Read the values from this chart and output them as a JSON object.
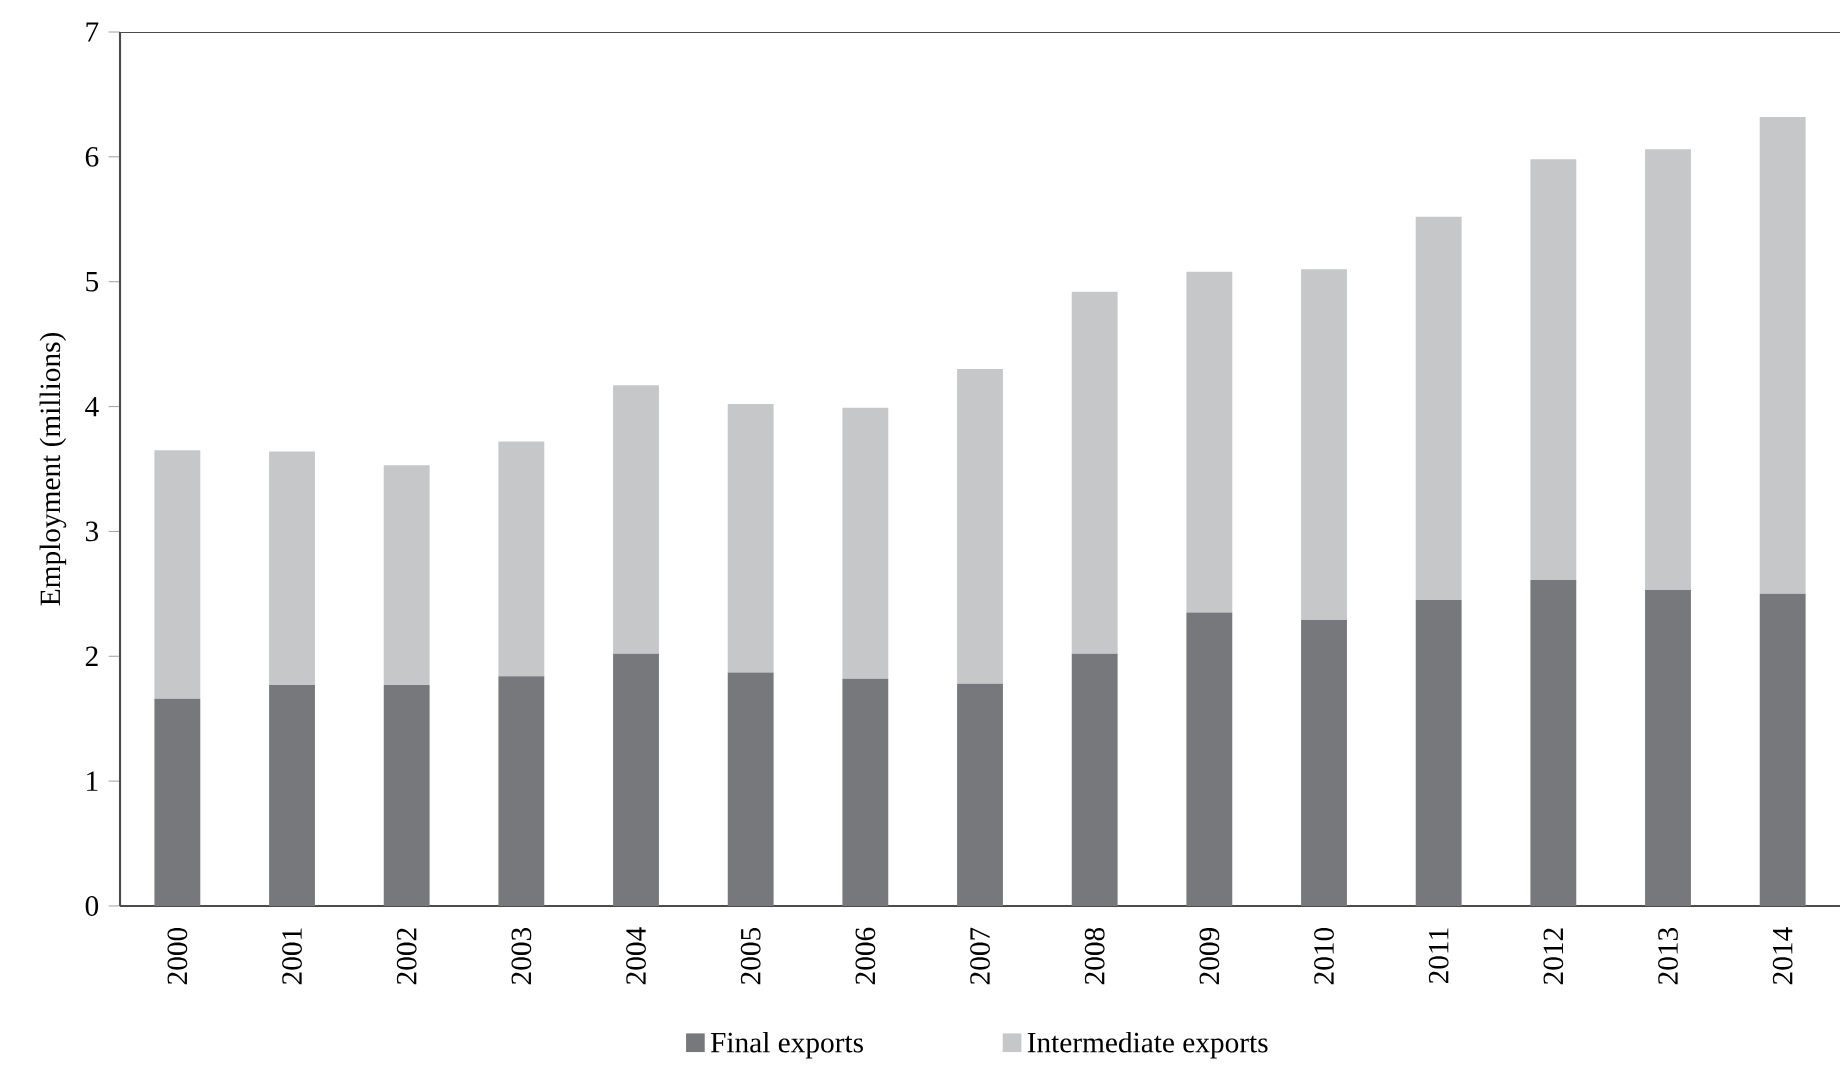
{
  "chart_data": {
    "type": "bar",
    "stacked": true,
    "ylabel": "Employment (millions)",
    "categories": [
      "2000",
      "2001",
      "2002",
      "2003",
      "2004",
      "2005",
      "2006",
      "2007",
      "2008",
      "2009",
      "2010",
      "2011",
      "2012",
      "2013",
      "2014"
    ],
    "series": [
      {
        "name": "Final exports",
        "color": "#77787c",
        "values": [
          1.66,
          1.77,
          1.77,
          1.84,
          2.02,
          1.87,
          1.82,
          1.78,
          2.02,
          2.35,
          2.29,
          2.45,
          2.61,
          2.53,
          2.5
        ]
      },
      {
        "name": "Intermediate exports",
        "color": "#c6c7c9",
        "values": [
          1.99,
          1.87,
          1.76,
          1.88,
          2.15,
          2.15,
          2.17,
          2.52,
          2.9,
          2.73,
          2.81,
          3.07,
          3.37,
          3.53,
          3.82
        ]
      }
    ],
    "ylim": [
      0,
      7
    ],
    "yticks": [
      0,
      1,
      2,
      3,
      4,
      5,
      6,
      7
    ],
    "grid": false,
    "legend": "bottom"
  }
}
